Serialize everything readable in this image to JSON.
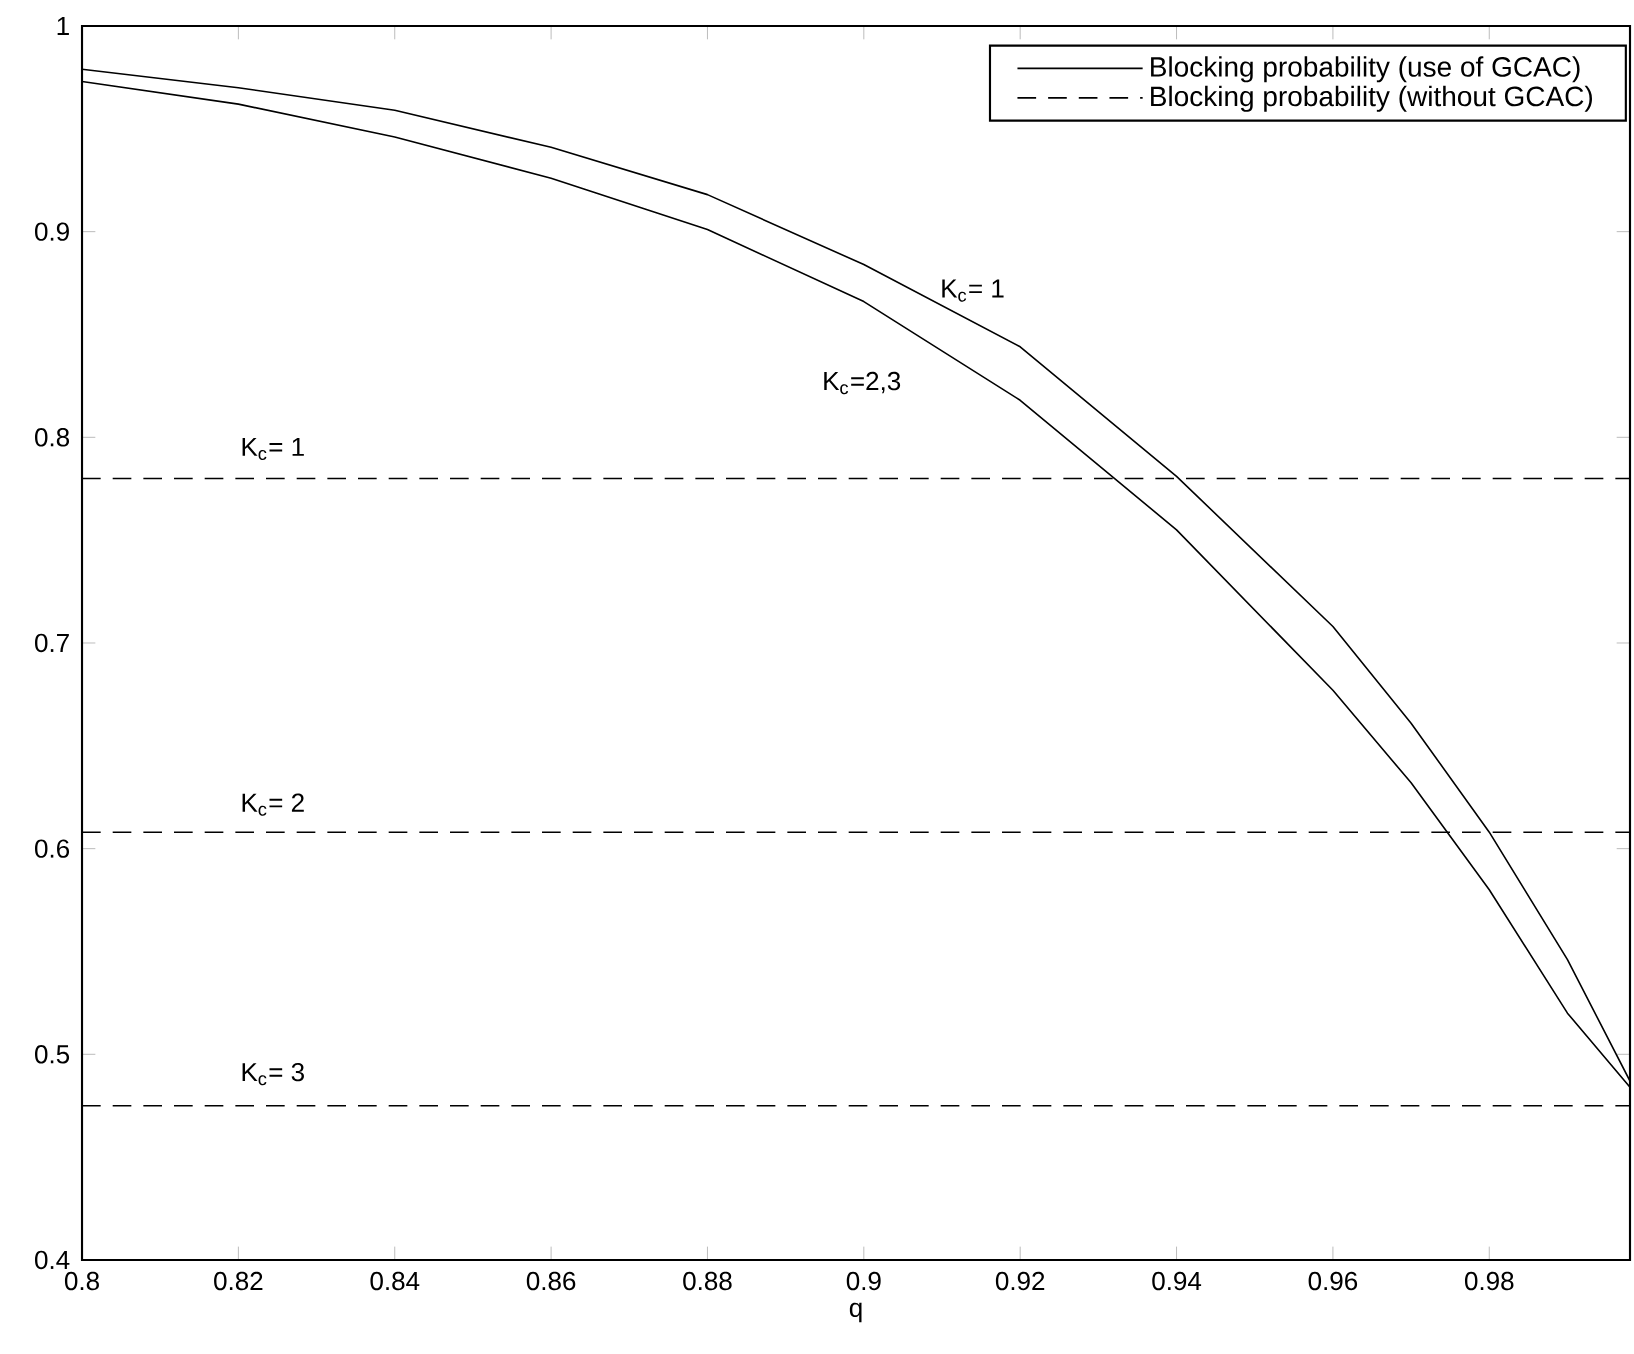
{
  "chart_data": {
    "type": "line",
    "xlabel": "q",
    "x": [
      0.8,
      0.82,
      0.84,
      0.86,
      0.88,
      0.9,
      0.92,
      0.94,
      0.96,
      0.97,
      0.98,
      0.99,
      0.998
    ],
    "series": [
      {
        "name": "Blocking probability (use of GCAC)",
        "color": "#000000",
        "line_style": "solid",
        "values": [
          0.979,
          0.97,
          0.959,
          0.941,
          0.918,
          0.884,
          0.844,
          0.781,
          0.708,
          0.661,
          0.608,
          0.546,
          0.487
        ]
      },
      {
        "color": "#000000",
        "line_style": "solid",
        "values": [
          0.973,
          0.962,
          0.946,
          0.926,
          0.901,
          0.866,
          0.818,
          0.755,
          0.677,
          0.632,
          0.58,
          0.52,
          0.484
        ]
      },
      {
        "name": "Blocking probability (without GCAC)",
        "color": "#000000",
        "line_style": "dashed",
        "values": [
          0.78,
          0.78,
          0.78,
          0.78,
          0.78,
          0.78,
          0.78,
          0.78,
          0.78,
          0.78,
          0.78,
          0.78,
          0.78
        ]
      },
      {
        "color": "#000000",
        "line_style": "dashed",
        "values": [
          0.608,
          0.608,
          0.608,
          0.608,
          0.608,
          0.608,
          0.608,
          0.608,
          0.608,
          0.608,
          0.608,
          0.608,
          0.608
        ]
      },
      {
        "color": "#000000",
        "line_style": "dashed",
        "values": [
          0.475,
          0.475,
          0.475,
          0.475,
          0.475,
          0.475,
          0.475,
          0.475,
          0.475,
          0.475,
          0.475,
          0.475,
          0.475
        ]
      }
    ],
    "annotations": [
      "K$_{c}$= 1",
      "K$_{c}$=2,3",
      "K$_{c}$= 1",
      "K$_{c}$= 2",
      "K$_{c}$= 3"
    ],
    "xlim": [
      0.8,
      0.998
    ],
    "ylim": [
      0.4,
      1
    ],
    "xticks": [
      0.8,
      0.82,
      0.84,
      0.86,
      0.88,
      0.9,
      0.92,
      0.94,
      0.96,
      0.98
    ],
    "yticks": [
      0.4,
      0.5,
      0.6,
      0.7,
      0.8,
      0.9,
      1
    ],
    "grid": false,
    "legend": "top right"
  }
}
